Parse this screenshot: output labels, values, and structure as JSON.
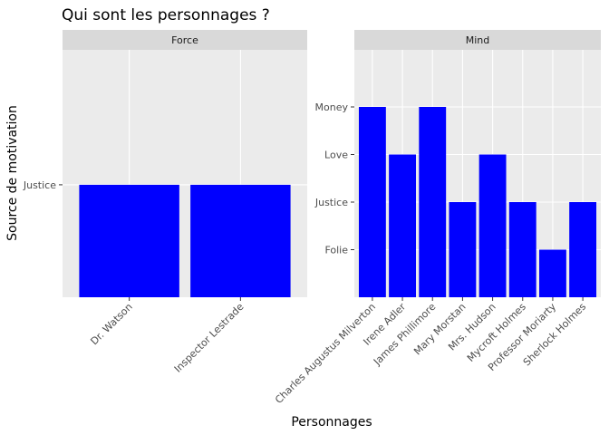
{
  "chart_data": {
    "type": "bar",
    "title": "Qui sont les personnages ?",
    "xlabel": "Personnages",
    "ylabel": "Source de motivation",
    "bar_color": "#0000FF",
    "panel_bg": "#EBEBEB",
    "strip_bg": "#D9D9D9",
    "grid": true,
    "legend": "none",
    "facets": [
      {
        "name": "Force",
        "y_levels": [
          "Justice"
        ],
        "categories": [
          "Dr. Watson",
          "Inspector Lestrade"
        ],
        "values": [
          "Justice",
          "Justice"
        ]
      },
      {
        "name": "Mind",
        "y_levels": [
          "Folie",
          "Justice",
          "Love",
          "Money"
        ],
        "categories": [
          "Charles Augustus Milverton",
          "Irene Adler",
          "James Phillimore",
          "Mary Morstan",
          "Mrs. Hudson",
          "Mycroft Holmes",
          "Professor Moriarty",
          "Sherlock Holmes"
        ],
        "values": [
          "Money",
          "Love",
          "Money",
          "Justice",
          "Love",
          "Justice",
          "Folie",
          "Justice"
        ]
      }
    ]
  }
}
